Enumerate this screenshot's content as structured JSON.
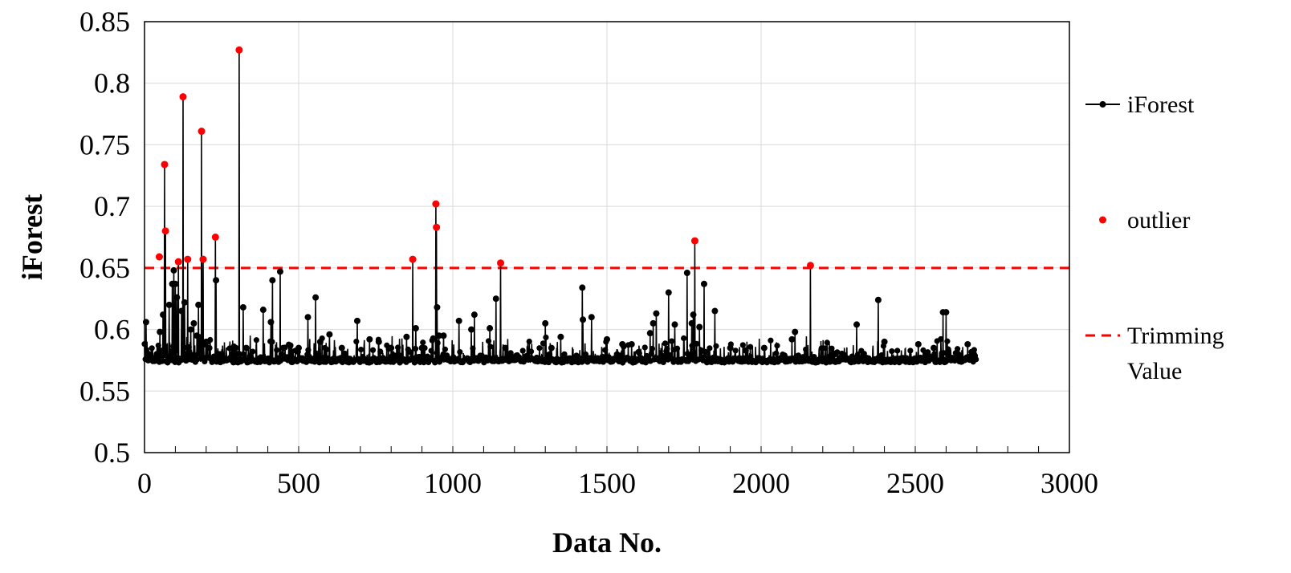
{
  "chart_data": {
    "type": "line",
    "title": "",
    "xlabel": "Data No.",
    "ylabel": "iForest",
    "xlim": [
      0,
      3000
    ],
    "ylim": [
      0.5,
      0.85
    ],
    "xticks": [
      0,
      500,
      1000,
      1500,
      2000,
      2500,
      3000
    ],
    "xtick_labels": [
      "0",
      "500",
      "1000",
      "1500",
      "2000",
      "2500",
      "3000"
    ],
    "yticks": [
      0.5,
      0.55,
      0.6,
      0.65,
      0.7,
      0.75,
      0.8,
      0.85
    ],
    "ytick_labels": [
      "0.5",
      "0.55",
      "0.6",
      "0.65",
      "0.7",
      "0.75",
      "0.8",
      "0.85"
    ],
    "grid": true,
    "legend_position": "right",
    "baseline": 0.575,
    "n_points": 2700,
    "colors": {
      "iforest": "#000000",
      "outlier": "#ff0000",
      "trimming": "#ff0000",
      "grid": "#d9d9d9",
      "frame": "#000000"
    },
    "series": [
      {
        "name": "iForest",
        "style": "line-marker",
        "spikes": [
          [
            5,
            0.606
          ],
          [
            40,
            0.58
          ],
          [
            50,
            0.598
          ],
          [
            60,
            0.612
          ],
          [
            65,
            0.734
          ],
          [
            68,
            0.68
          ],
          [
            80,
            0.62
          ],
          [
            90,
            0.637
          ],
          [
            95,
            0.648
          ],
          [
            100,
            0.637
          ],
          [
            105,
            0.626
          ],
          [
            110,
            0.655
          ],
          [
            120,
            0.615
          ],
          [
            125,
            0.789
          ],
          [
            130,
            0.622
          ],
          [
            140,
            0.657
          ],
          [
            150,
            0.6
          ],
          [
            160,
            0.605
          ],
          [
            170,
            0.595
          ],
          [
            175,
            0.62
          ],
          [
            180,
            0.59
          ],
          [
            185,
            0.761
          ],
          [
            190,
            0.657
          ],
          [
            200,
            0.59
          ],
          [
            210,
            0.585
          ],
          [
            230,
            0.675
          ],
          [
            232,
            0.64
          ],
          [
            240,
            0.58
          ],
          [
            250,
            0.58
          ],
          [
            290,
            0.586
          ],
          [
            307,
            0.827
          ],
          [
            320,
            0.618
          ],
          [
            330,
            0.585
          ],
          [
            385,
            0.616
          ],
          [
            410,
            0.606
          ],
          [
            415,
            0.64
          ],
          [
            440,
            0.647
          ],
          [
            450,
            0.585
          ],
          [
            500,
            0.585
          ],
          [
            530,
            0.61
          ],
          [
            555,
            0.626
          ],
          [
            570,
            0.59
          ],
          [
            600,
            0.596
          ],
          [
            640,
            0.585
          ],
          [
            690,
            0.607
          ],
          [
            730,
            0.592
          ],
          [
            760,
            0.59
          ],
          [
            800,
            0.585
          ],
          [
            850,
            0.594
          ],
          [
            870,
            0.657
          ],
          [
            880,
            0.601
          ],
          [
            900,
            0.585
          ],
          [
            945,
            0.702
          ],
          [
            947,
            0.683
          ],
          [
            949,
            0.618
          ],
          [
            955,
            0.595
          ],
          [
            970,
            0.595
          ],
          [
            1020,
            0.607
          ],
          [
            1060,
            0.6
          ],
          [
            1070,
            0.612
          ],
          [
            1120,
            0.601
          ],
          [
            1140,
            0.625
          ],
          [
            1155,
            0.654
          ],
          [
            1170,
            0.585
          ],
          [
            1300,
            0.605
          ],
          [
            1320,
            0.585
          ],
          [
            1350,
            0.594
          ],
          [
            1420,
            0.634
          ],
          [
            1422,
            0.608
          ],
          [
            1450,
            0.61
          ],
          [
            1500,
            0.592
          ],
          [
            1550,
            0.588
          ],
          [
            1580,
            0.588
          ],
          [
            1640,
            0.597
          ],
          [
            1650,
            0.605
          ],
          [
            1660,
            0.613
          ],
          [
            1700,
            0.63
          ],
          [
            1720,
            0.604
          ],
          [
            1760,
            0.646
          ],
          [
            1775,
            0.605
          ],
          [
            1780,
            0.612
          ],
          [
            1785,
            0.672
          ],
          [
            1800,
            0.602
          ],
          [
            1815,
            0.637
          ],
          [
            1850,
            0.615
          ],
          [
            1900,
            0.585
          ],
          [
            1950,
            0.583
          ],
          [
            2010,
            0.585
          ],
          [
            2100,
            0.592
          ],
          [
            2110,
            0.598
          ],
          [
            2160,
            0.652
          ],
          [
            2310,
            0.604
          ],
          [
            2380,
            0.624
          ],
          [
            2400,
            0.59
          ],
          [
            2510,
            0.588
          ],
          [
            2560,
            0.585
          ],
          [
            2590,
            0.614
          ],
          [
            2600,
            0.614
          ],
          [
            2670,
            0.588
          ],
          [
            2690,
            0.58
          ]
        ]
      },
      {
        "name": "outlier",
        "style": "marker",
        "points": [
          [
            48,
            0.659
          ],
          [
            65,
            0.734
          ],
          [
            68,
            0.68
          ],
          [
            110,
            0.655
          ],
          [
            125,
            0.789
          ],
          [
            140,
            0.657
          ],
          [
            185,
            0.761
          ],
          [
            190,
            0.657
          ],
          [
            230,
            0.675
          ],
          [
            307,
            0.827
          ],
          [
            870,
            0.657
          ],
          [
            945,
            0.702
          ],
          [
            947,
            0.683
          ],
          [
            1155,
            0.654
          ],
          [
            1785,
            0.672
          ],
          [
            2160,
            0.652
          ]
        ]
      },
      {
        "name": "Trimming Value",
        "style": "dashed",
        "value": 0.65
      }
    ],
    "legend": [
      {
        "key": "iforest",
        "label": "iForest"
      },
      {
        "key": "outlier",
        "label": "outlier"
      },
      {
        "key": "trimming",
        "label_lines": [
          "Trimming",
          "Value"
        ]
      }
    ]
  }
}
